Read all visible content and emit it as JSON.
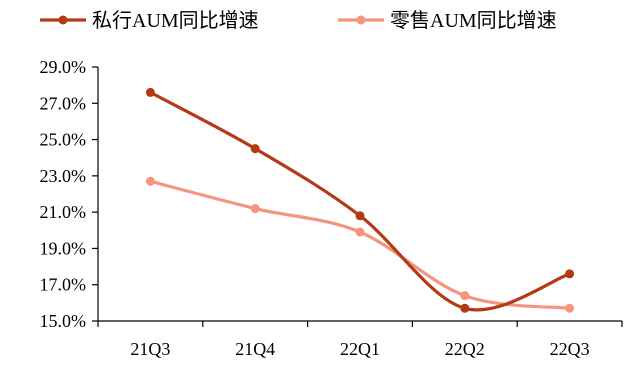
{
  "chart_data": {
    "type": "line",
    "title": "",
    "xlabel": "",
    "ylabel": "",
    "categories": [
      "21Q3",
      "21Q4",
      "22Q1",
      "22Q2",
      "22Q3"
    ],
    "ylim": [
      15.0,
      29.0
    ],
    "yticks": [
      15.0,
      17.0,
      19.0,
      21.0,
      23.0,
      25.0,
      27.0,
      29.0
    ],
    "ytick_labels": [
      "15.0%",
      "17.0%",
      "19.0%",
      "21.0%",
      "23.0%",
      "25.0%",
      "27.0%",
      "29.0%"
    ],
    "grid": false,
    "legend_position": "top",
    "smooth": true,
    "series": [
      {
        "name": "私行AUM同比增速",
        "color": "#b33a14",
        "values": [
          27.6,
          24.5,
          20.8,
          15.7,
          17.6
        ]
      },
      {
        "name": "零售AUM同比增速",
        "color": "#f4957e",
        "values": [
          22.7,
          21.2,
          19.9,
          16.4,
          15.7
        ]
      }
    ]
  }
}
